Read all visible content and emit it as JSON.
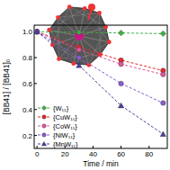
{
  "chart_data": {
    "type": "line",
    "x_label": "Time / min",
    "y_label": "[BB41] / [BB41]₀",
    "x": [
      0,
      30,
      60,
      90
    ],
    "xlim": [
      -2,
      93
    ],
    "xticks": [
      0,
      20,
      40,
      60,
      80
    ],
    "ylim": [
      0.1,
      1.05
    ],
    "yticks": [
      {
        "value": 0.2,
        "label": "0.2"
      },
      {
        "value": 0.4,
        "label": "0.4"
      },
      {
        "value": 0.6,
        "label": "0.6"
      },
      {
        "value": 0.8,
        "label": "0.8"
      },
      {
        "value": 1.0,
        "label": "1.0"
      }
    ],
    "legend": "lower left",
    "series": [
      {
        "name": "{W₁₁}",
        "color": "#3cb043",
        "marker": "diamond",
        "line_style": "dashed",
        "values": [
          1.0,
          0.995,
          0.99,
          0.985
        ]
      },
      {
        "name": "{CuW₁₁}",
        "color": "#e8262b",
        "marker": "circle",
        "line_style": "dashed",
        "values": [
          1.0,
          0.88,
          0.78,
          0.7
        ]
      },
      {
        "name": "{CoW₁₁}",
        "color": "#e0559a",
        "marker": "circle",
        "line_style": "dashed",
        "values": [
          1.0,
          0.86,
          0.75,
          0.67
        ]
      },
      {
        "name": "{NiW₁₁}",
        "color": "#8a5bd0",
        "marker": "circle",
        "line_style": "dashed",
        "values": [
          1.0,
          0.8,
          0.6,
          0.45
        ]
      },
      {
        "name": "{MnW₁₁}",
        "color": "#4b3f9e",
        "marker": "triangle",
        "line_style": "dashed",
        "values": [
          1.0,
          0.74,
          0.43,
          0.21
        ]
      }
    ]
  }
}
